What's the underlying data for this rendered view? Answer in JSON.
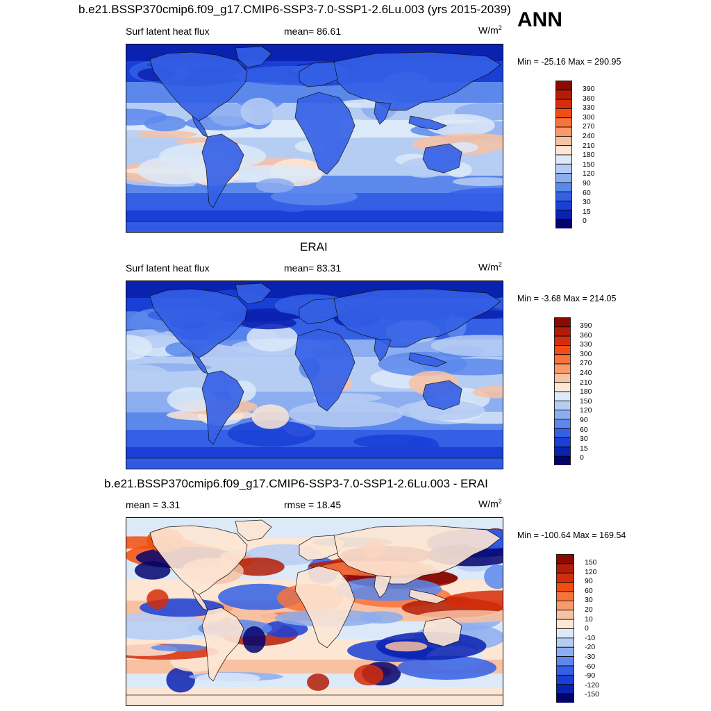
{
  "season": "ANN",
  "panels": [
    {
      "title": "b.e21.BSSP370cmip6.f09_g17.CMIP6-SSP3-7.0-SSP1-2.6Lu.003 (yrs 2015-2039)",
      "left": "Surf latent heat flux",
      "center": "mean=  86.61",
      "units": "W/m",
      "units_exp": "2",
      "minmax": "Min = -25.16 Max = 290.95",
      "scheme": "abs",
      "kind": "model"
    },
    {
      "title": "ERAI",
      "left": "Surf latent heat flux",
      "center": "mean=  83.31",
      "units": "W/m",
      "units_exp": "2",
      "minmax": "Min =  -3.68 Max = 214.05",
      "scheme": "abs",
      "kind": "obs"
    },
    {
      "title": "b.e21.BSSP370cmip6.f09_g17.CMIP6-SSP3-7.0-SSP1-2.6Lu.003 - ERAI",
      "left": "mean =   3.31",
      "center": "rmse =  18.45",
      "units": "W/m",
      "units_exp": "2",
      "minmax": "Min = -100.64 Max = 169.54",
      "scheme": "diff",
      "kind": "diff"
    }
  ],
  "colorbars": {
    "abs": {
      "labels": [
        "390",
        "360",
        "330",
        "300",
        "270",
        "240",
        "210",
        "180",
        "150",
        "120",
        "90",
        "60",
        "30",
        "15",
        "0"
      ],
      "colors": [
        "#8b0a04",
        "#b31d07",
        "#d52d0b",
        "#f04d12",
        "#f8733a",
        "#f99a6c",
        "#f8c1a2",
        "#fde6d4",
        "#dce9f8",
        "#b6cdf3",
        "#8cadf0",
        "#5c88ec",
        "#3460e6",
        "#1a3fd6",
        "#0a22b0",
        "#03036e"
      ]
    },
    "diff": {
      "labels": [
        "150",
        "120",
        "90",
        "60",
        "30",
        "20",
        "10",
        "0",
        "-10",
        "-20",
        "-30",
        "-60",
        "-90",
        "-120",
        "-150"
      ],
      "colors": [
        "#8b0a04",
        "#b31d07",
        "#d52d0b",
        "#f04d12",
        "#f8733a",
        "#f99a6c",
        "#f8c1a2",
        "#fde6d4",
        "#dce9f8",
        "#b6cdf3",
        "#8cadf0",
        "#5c88ec",
        "#3460e6",
        "#1a3fd6",
        "#0a22b0",
        "#03036e"
      ]
    }
  }
}
